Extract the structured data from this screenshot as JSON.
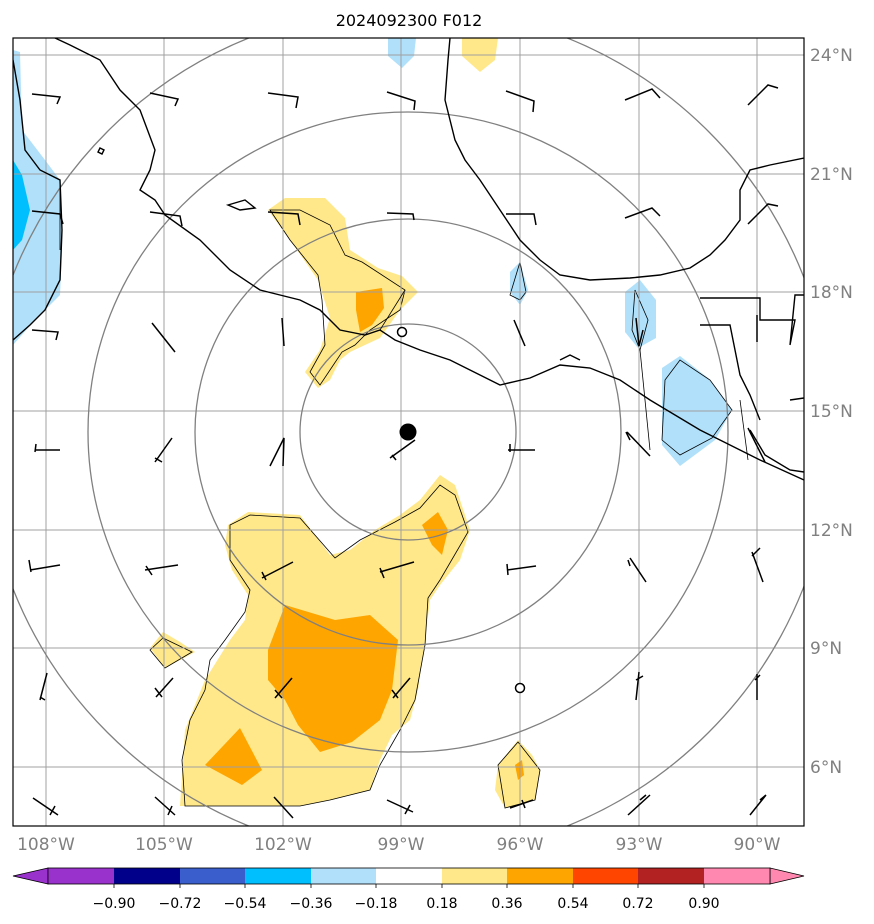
{
  "title": "2024092300 F012",
  "lat_labels": [
    "24°N",
    "21°N",
    "18°N",
    "15°N",
    "12°N",
    "9°N",
    "6°N"
  ],
  "lon_labels": [
    "108°W",
    "105°W",
    "102°W",
    "99°W",
    "96°W",
    "93°W",
    "90°W"
  ],
  "colorbar": {
    "ticks": [
      "−0.90",
      "−0.72",
      "−0.54",
      "−0.36",
      "−0.18",
      "0.18",
      "0.36",
      "0.54",
      "0.72",
      "0.90"
    ],
    "colors": [
      "#9932cc",
      "#00008b",
      "#3a5fcd",
      "#00bfff",
      "#b0e0fa",
      "#ffffff",
      "#ffe88a",
      "#ffa500",
      "#ff4500",
      "#b22222",
      "#ff88b0"
    ]
  },
  "colors": {
    "frame": "#000000",
    "grid": "#a0a0a0",
    "range_rings": "#808080",
    "coast": "#000000"
  },
  "map": {
    "lon_range": [
      -108.8,
      -89.2
    ],
    "lat_range": [
      4.8,
      24.4
    ],
    "center_marker": {
      "lon": -98.8,
      "lat": 14.5
    },
    "station_markers": [
      {
        "lon": -99.0,
        "lat": 17.0
      },
      {
        "lon": -96.0,
        "lat": 8.0
      }
    ]
  }
}
